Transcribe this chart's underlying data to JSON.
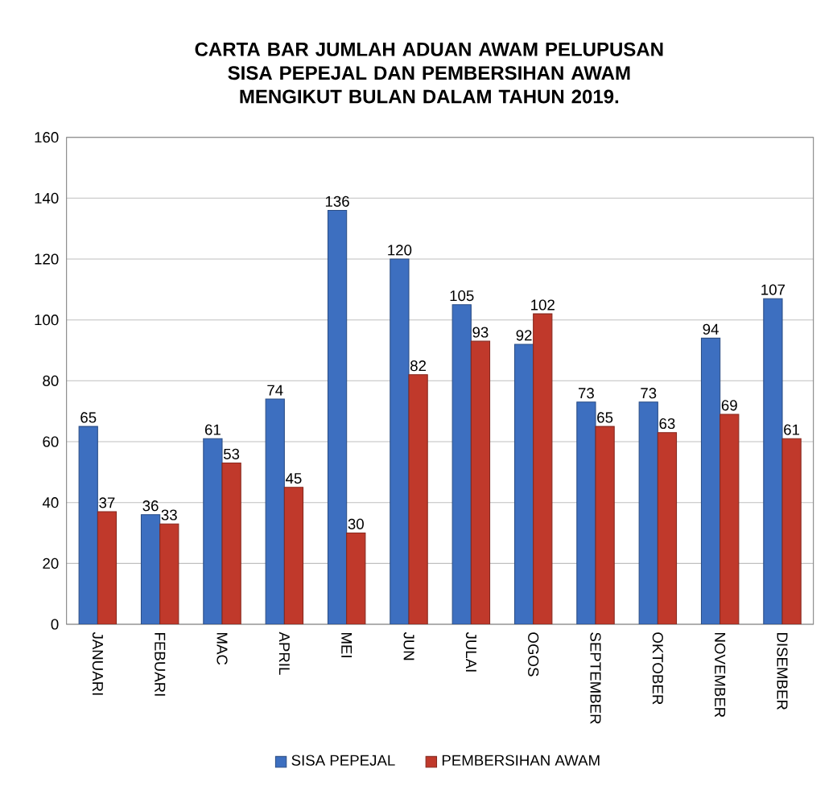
{
  "chart_data": {
    "type": "bar",
    "title": "CARTA BAR JUMLAH ADUAN AWAM PELUPUSAN SISA PEPEJAL DAN PEMBERSIHAN AWAM MENGIKUT BULAN DALAM TAHUN 2019.",
    "categories": [
      "JANUARI",
      "FEBUARI",
      "MAC",
      "APRIL",
      "MEI",
      "JUN",
      "JULAI",
      "OGOS",
      "SEPTEMBER",
      "OKTOBER",
      "NOVEMBER",
      "DISEMBER"
    ],
    "series": [
      {
        "name": "SISA PEPEJAL",
        "color": "#3d6fc0",
        "values": [
          65,
          36,
          61,
          74,
          136,
          120,
          105,
          92,
          73,
          73,
          94,
          107
        ]
      },
      {
        "name": "PEMBERSIHAN AWAM",
        "color": "#c0392b",
        "values": [
          37,
          33,
          53,
          45,
          30,
          82,
          93,
          102,
          65,
          63,
          69,
          61
        ]
      }
    ],
    "ylim": [
      0,
      160
    ],
    "yticks": [
      0,
      20,
      40,
      60,
      80,
      100,
      120,
      140,
      160
    ],
    "grid": "y",
    "legend": "bottom",
    "data_labels": true
  }
}
